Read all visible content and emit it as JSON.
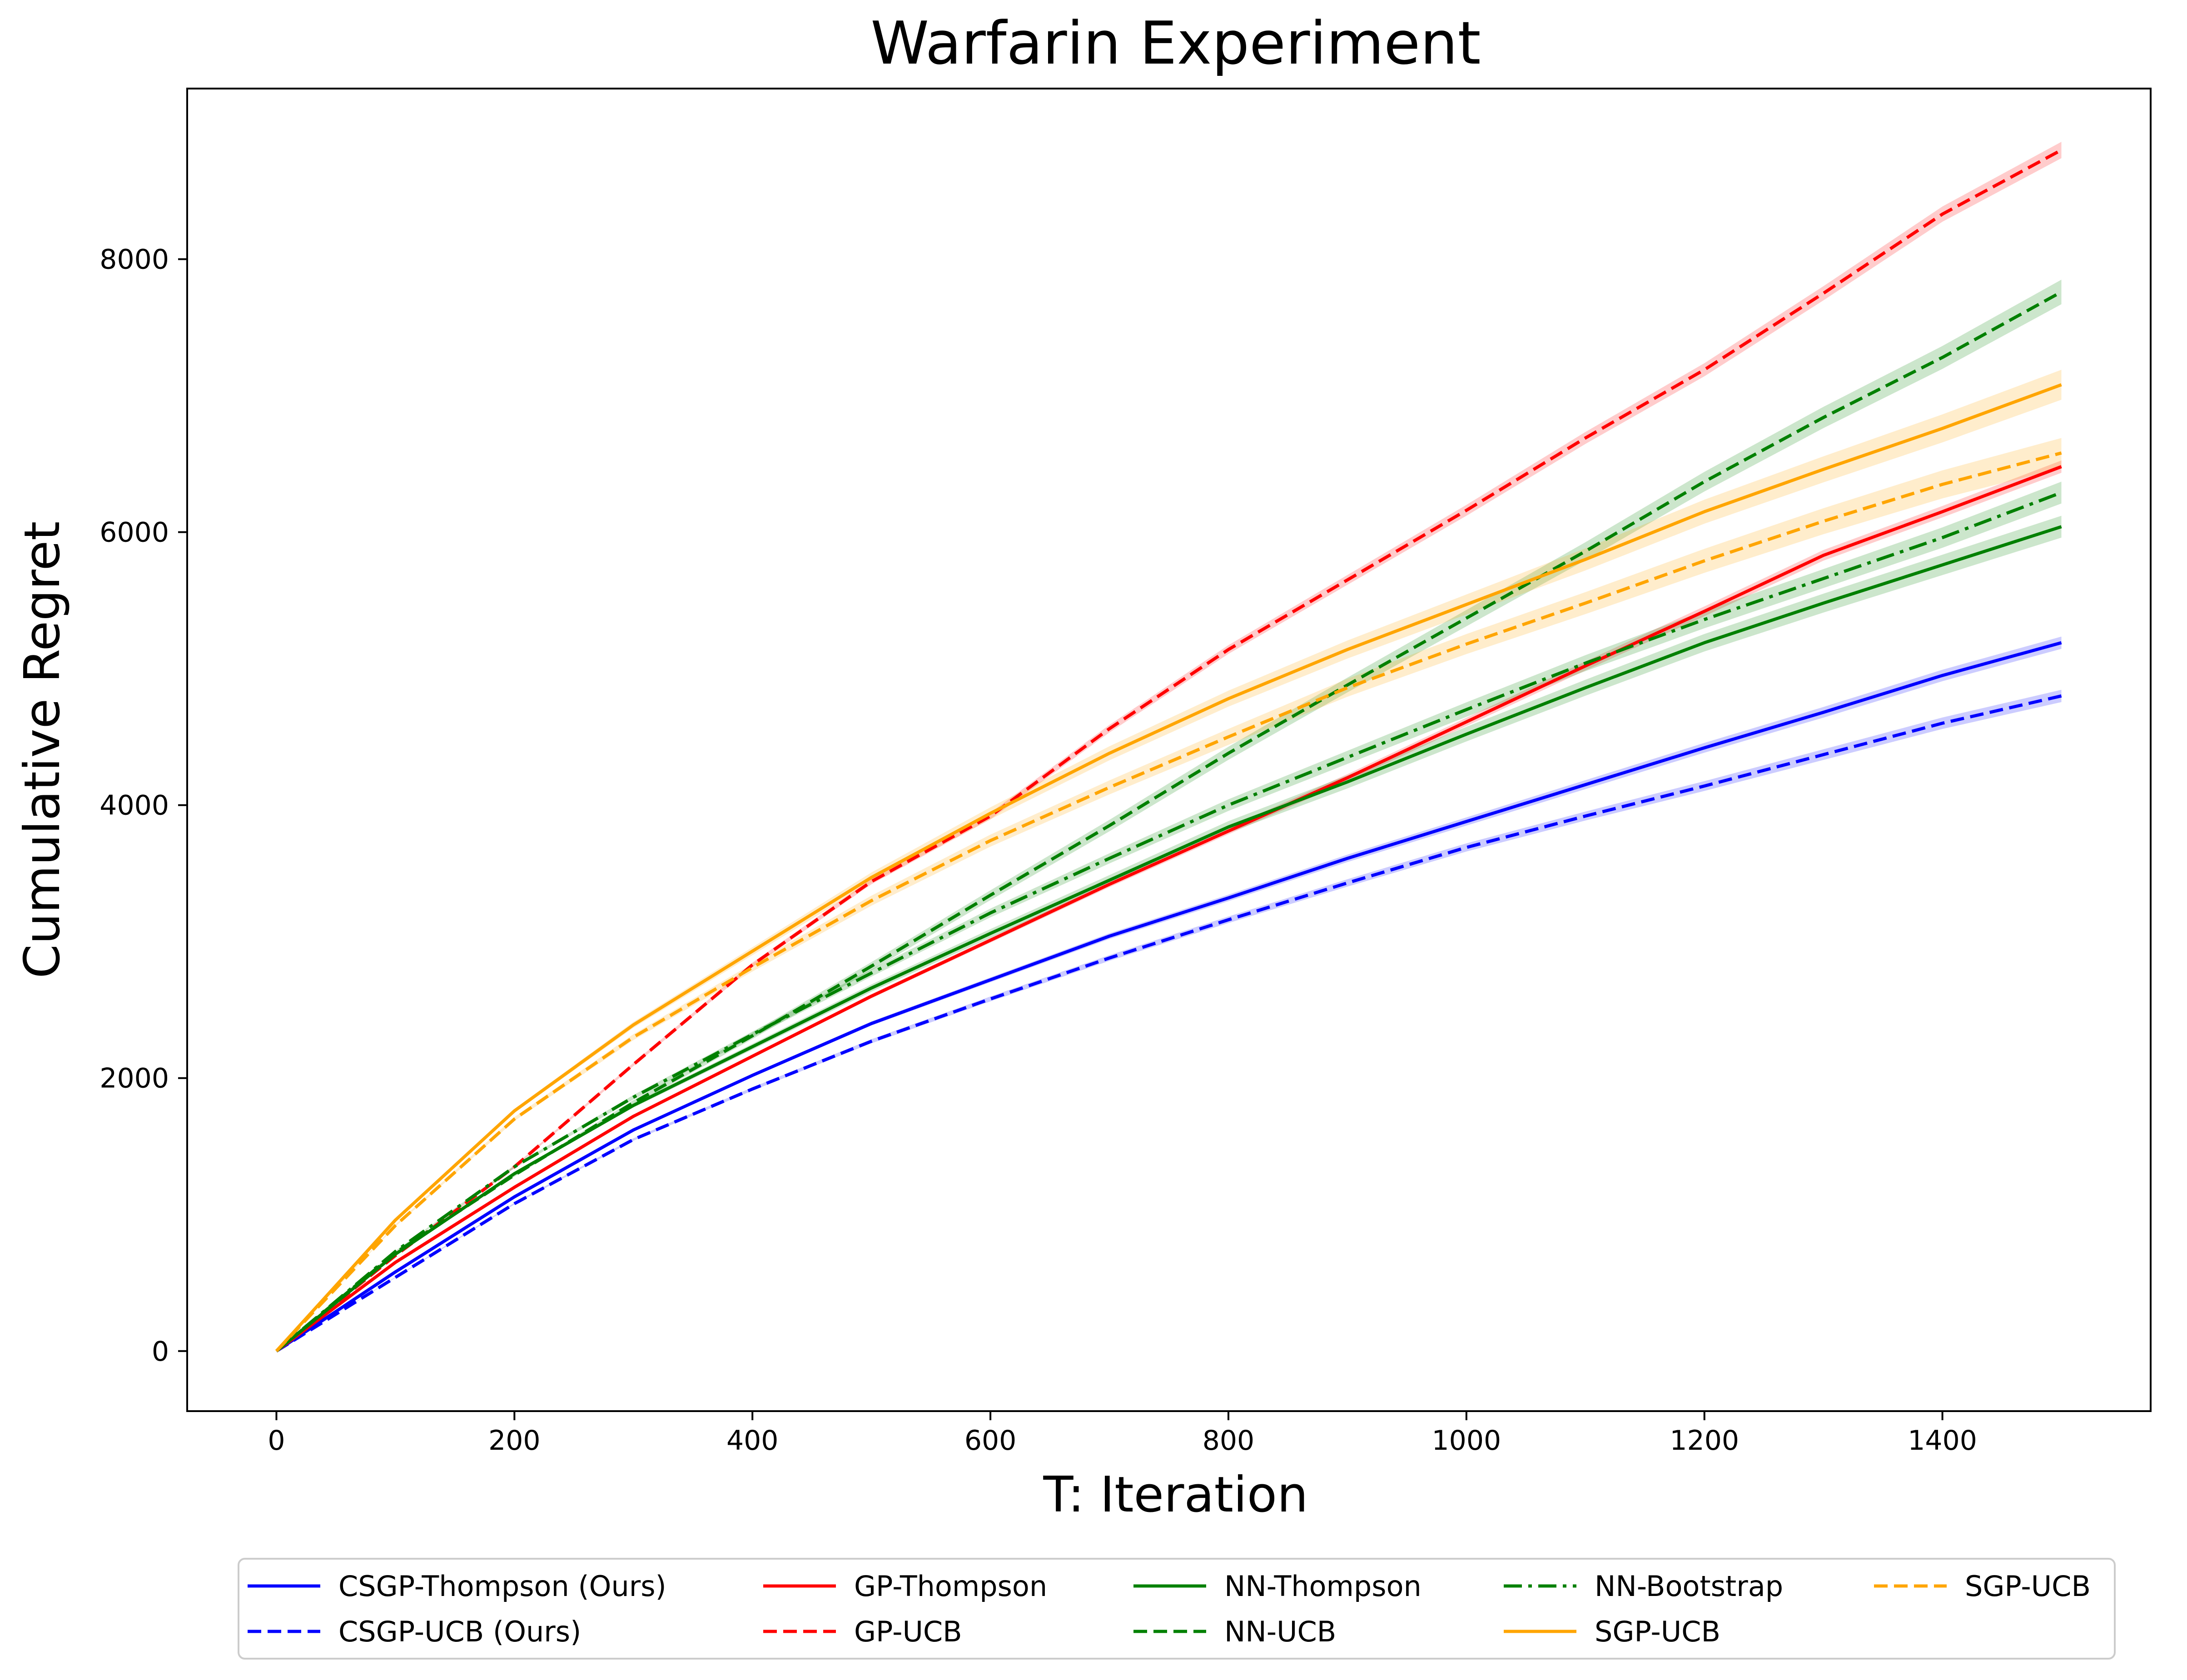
{
  "chart_data": {
    "type": "line",
    "title": "Warfarin Experiment",
    "xlabel": "T: Iteration",
    "ylabel": "Cumulative Regret",
    "xlim": [
      -75,
      1575
    ],
    "ylim": [
      -440,
      9250
    ],
    "xticks": [
      0,
      200,
      400,
      600,
      800,
      1000,
      1200,
      1400
    ],
    "yticks": [
      0,
      2000,
      4000,
      6000,
      8000
    ],
    "grid": false,
    "legend_location": "bottom-center, below axes, 5 columns",
    "x": [
      0,
      100,
      200,
      300,
      400,
      500,
      600,
      700,
      800,
      900,
      1000,
      1100,
      1200,
      1300,
      1400,
      1500
    ],
    "series": [
      {
        "name": "CSGP-Thompson (Ours)",
        "color": "#0000ff",
        "style": "solid",
        "band": 45,
        "values": [
          0,
          580,
          1130,
          1620,
          2020,
          2400,
          2720,
          3040,
          3320,
          3610,
          3880,
          4150,
          4420,
          4680,
          4950,
          5190
        ]
      },
      {
        "name": "CSGP-UCB (Ours)",
        "color": "#0000ff",
        "style": "dashed",
        "band": 45,
        "values": [
          0,
          540,
          1080,
          1550,
          1920,
          2270,
          2580,
          2880,
          3160,
          3430,
          3690,
          3920,
          4140,
          4370,
          4600,
          4800
        ]
      },
      {
        "name": "GP-Thompson",
        "color": "#ff0000",
        "style": "solid",
        "band": 45,
        "values": [
          0,
          650,
          1200,
          1720,
          2160,
          2600,
          3010,
          3420,
          3810,
          4200,
          4610,
          5020,
          5420,
          5830,
          6150,
          6480
        ]
      },
      {
        "name": "GP-UCB",
        "color": "#ff0000",
        "style": "dashed",
        "band": 60,
        "values": [
          0,
          700,
          1350,
          2100,
          2830,
          3440,
          3920,
          4560,
          5140,
          5650,
          6160,
          6690,
          7190,
          7750,
          8330,
          8800
        ]
      },
      {
        "name": "NN-Thompson",
        "color": "#008000",
        "style": "solid",
        "band": 80,
        "values": [
          0,
          710,
          1300,
          1800,
          2230,
          2660,
          3060,
          3450,
          3840,
          4170,
          4520,
          4860,
          5190,
          5480,
          5760,
          6040
        ]
      },
      {
        "name": "NN-UCB",
        "color": "#008000",
        "style": "dashed",
        "band": 90,
        "values": [
          0,
          720,
          1290,
          1820,
          2310,
          2820,
          3340,
          3850,
          4380,
          4880,
          5370,
          5860,
          6370,
          6840,
          7280,
          7760
        ]
      },
      {
        "name": "NN-Bootstrap",
        "color": "#008000",
        "style": "dashdot",
        "band": 80,
        "values": [
          0,
          730,
          1350,
          1860,
          2320,
          2770,
          3210,
          3610,
          4000,
          4350,
          4700,
          5040,
          5360,
          5660,
          5960,
          6290
        ]
      },
      {
        "name": "SGP-UCB",
        "color": "#ffa500",
        "style": "solid",
        "band": 110,
        "values": [
          0,
          960,
          1760,
          2390,
          2930,
          3470,
          3940,
          4380,
          4780,
          5140,
          5470,
          5800,
          6150,
          6460,
          6760,
          7080
        ]
      },
      {
        "name": "SGP-UCB",
        "color": "#ffa500",
        "style": "dashed",
        "band": 110,
        "values": [
          0,
          920,
          1700,
          2300,
          2810,
          3300,
          3740,
          4130,
          4500,
          4860,
          5180,
          5480,
          5790,
          6080,
          6350,
          6580
        ]
      }
    ]
  }
}
